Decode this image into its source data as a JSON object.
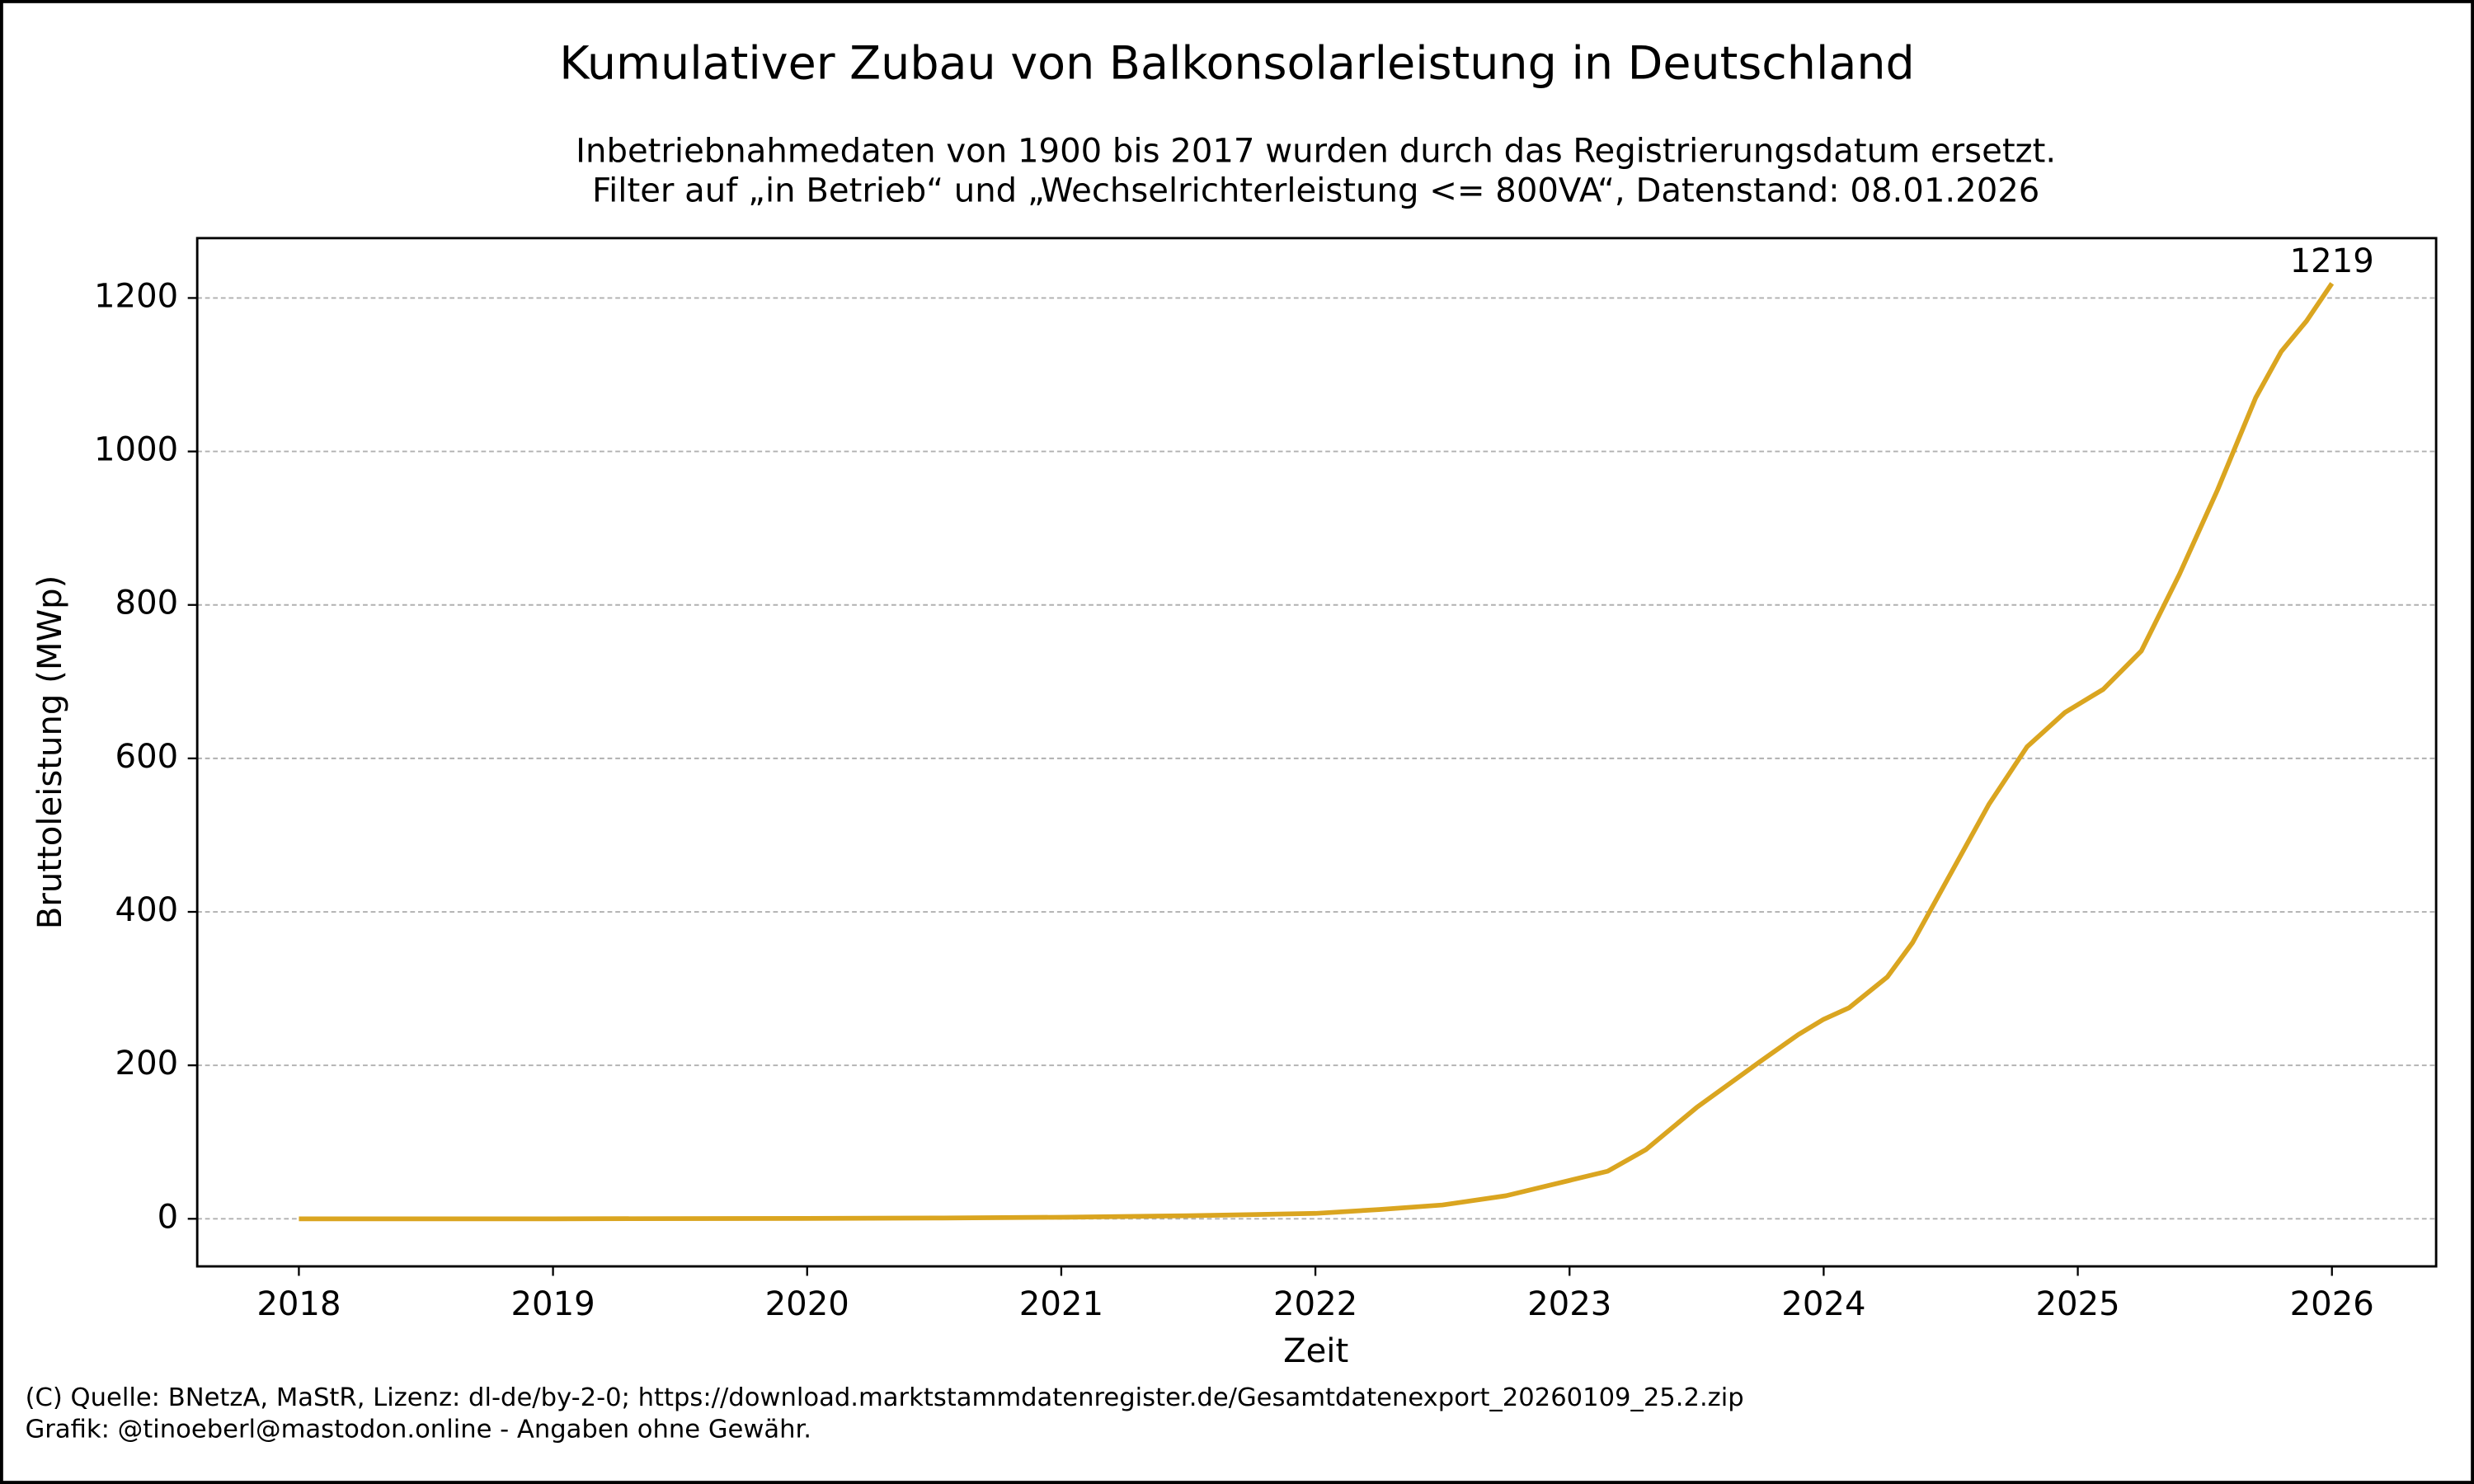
{
  "chart_data": {
    "type": "line",
    "title": "Kumulativer Zubau von Balkonsolarleistung in Deutschland",
    "subtitle": [
      "Inbetriebnahmedaten von 1900 bis 2017 wurden durch das Registrierungsdatum ersetzt.",
      "Filter auf „in Betrieb“ und „Wechselrichterleistung <= 800VA“, Datenstand: 08.01.2026"
    ],
    "x_label": "Zeit",
    "y_label": "Bruttoleistung (MWp)",
    "x": [
      2018.0,
      2019.0,
      2020.0,
      2020.5,
      2021.0,
      2021.5,
      2022.0,
      2022.25,
      2022.5,
      2022.75,
      2023.0,
      2023.15,
      2023.3,
      2023.5,
      2023.75,
      2023.9,
      2024.0,
      2024.1,
      2024.25,
      2024.35,
      2024.5,
      2024.65,
      2024.8,
      2024.95,
      2025.1,
      2025.25,
      2025.4,
      2025.55,
      2025.7,
      2025.8,
      2025.9,
      2026.0
    ],
    "values": [
      0,
      0,
      0.5,
      1,
      2,
      4,
      7,
      12,
      18,
      30,
      50,
      62,
      90,
      145,
      205,
      240,
      260,
      275,
      315,
      360,
      450,
      540,
      615,
      660,
      690,
      740,
      840,
      950,
      1070,
      1130,
      1170,
      1219
    ],
    "color": "#daa520",
    "annotation": "1219",
    "xlim": [
      2017.6,
      2026.41
    ],
    "xticks": [
      2018,
      2019,
      2020,
      2021,
      2022,
      2023,
      2024,
      2025,
      2026
    ],
    "ylim": [
      -62,
      1278
    ],
    "yticks": [
      0,
      200,
      400,
      600,
      800,
      1000,
      1200
    ],
    "grid": true,
    "footer": [
      "(C) Quelle: BNetzA, MaStR, Lizenz: dl-de/by-2-0; https://download.marktstammdatenregister.de/Gesamtdatenexport_20260109_25.2.zip",
      "Grafik: @tinoeberl@mastodon.online - Angaben ohne Gewähr."
    ]
  }
}
